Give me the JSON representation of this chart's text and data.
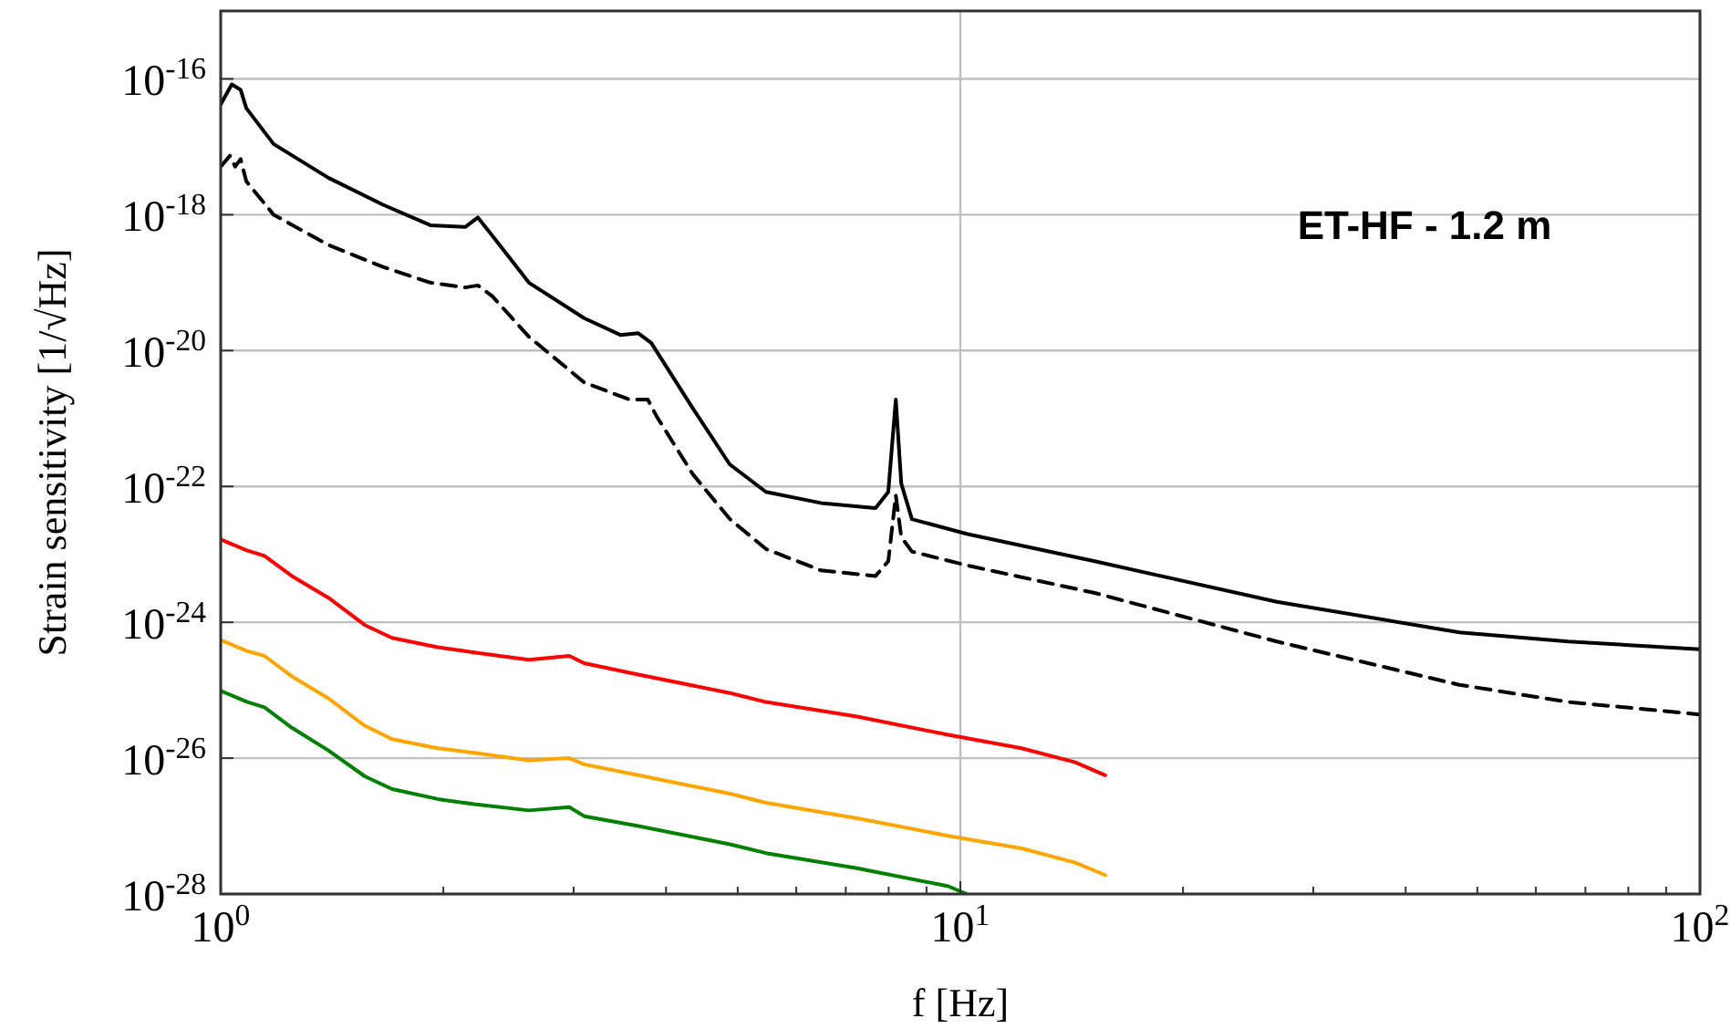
{
  "chart_data": {
    "type": "line",
    "xlabel": "f [Hz]",
    "ylabel": "Strain sensitivity [1/√Hz]",
    "log": "xy",
    "grid": true,
    "xlim": [
      1,
      100
    ],
    "ylim": [
      1e-28,
      1e-15
    ],
    "xticks": [
      {
        "value": 1,
        "label": "10$^{0}$"
      },
      {
        "value": 2,
        "label": null
      },
      {
        "value": 3,
        "label": null
      },
      {
        "value": 4,
        "label": null
      },
      {
        "value": 5,
        "label": null
      },
      {
        "value": 6,
        "label": null
      },
      {
        "value": 7,
        "label": null
      },
      {
        "value": 8,
        "label": null
      },
      {
        "value": 9,
        "label": null
      },
      {
        "value": 10,
        "label": "10$^{1}$"
      },
      {
        "value": 20,
        "label": null
      },
      {
        "value": 30,
        "label": null
      },
      {
        "value": 40,
        "label": null
      },
      {
        "value": 50,
        "label": null
      },
      {
        "value": 60,
        "label": null
      },
      {
        "value": 70,
        "label": null
      },
      {
        "value": 80,
        "label": null
      },
      {
        "value": 90,
        "label": null
      },
      {
        "value": 100,
        "label": "10$^{2}$"
      }
    ],
    "yticks": [
      {
        "value": 1e-28,
        "label": "10$^{-28}$"
      },
      {
        "value": 1e-26,
        "label": "10$^{-26}$"
      },
      {
        "value": 1e-24,
        "label": "10$^{-24}$"
      },
      {
        "value": 1e-22,
        "label": "10$^{-22}$"
      },
      {
        "value": 1e-20,
        "label": "10$^{-20}$"
      },
      {
        "value": 1e-18,
        "label": "10$^{-18}$"
      },
      {
        "value": 1e-16,
        "label": "10$^{-16}$"
      }
    ],
    "annotations": [
      "ET-HF - 1.2 m"
    ],
    "series": [
      {
        "color": "#000000",
        "line_style": "solid",
        "x": [
          1,
          1.035,
          1.064,
          1.083,
          1.179,
          1.398,
          1.658,
          1.921,
          2.141,
          2.227,
          2.33,
          2.61,
          3.1,
          3.47,
          3.67,
          3.82,
          4.35,
          4.88,
          5.46,
          6.48,
          7.68,
          7.99,
          8.18,
          8.32,
          8.6,
          10.2,
          15.2,
          26.8,
          47.3,
          66.4,
          100
        ],
        "values": [
          4.2e-17,
          8.3e-17,
          6.9e-17,
          3.7e-17,
          1.1e-17,
          3.5e-18,
          1.4e-18,
          7e-19,
          6.6e-19,
          9.1e-19,
          4.9e-19,
          1e-19,
          3e-20,
          1.7e-20,
          1.8e-20,
          1.3e-20,
          1.4e-21,
          2.1e-22,
          8.3e-23,
          5.7e-23,
          4.8e-23,
          8.3e-23,
          1.9e-21,
          1.1e-22,
          3.3e-23,
          2e-23,
          7.9e-24,
          2e-24,
          7.1e-25,
          5.2e-25,
          4e-25
        ]
      },
      {
        "color": "#000000",
        "line_style": "dashed",
        "x": [
          1,
          1.029,
          1.046,
          1.064,
          1.083,
          1.179,
          1.398,
          1.658,
          1.921,
          2.141,
          2.227,
          2.33,
          2.61,
          3.1,
          3.57,
          3.78,
          3.88,
          4.35,
          4.88,
          5.46,
          6.48,
          7.68,
          7.99,
          8.18,
          8.32,
          8.6,
          10.2,
          15.2,
          26.8,
          47.3,
          66.4,
          100
        ],
        "values": [
          5.1e-18,
          7.4e-18,
          5.1e-18,
          6.6e-18,
          3.1e-18,
          1e-18,
          3.6e-19,
          1.7e-19,
          1e-19,
          8.5e-20,
          9.1e-20,
          6.3e-20,
          1.6e-20,
          3.4e-21,
          1.9e-21,
          1.9e-21,
          1.1e-21,
          1.5e-22,
          3.3e-23,
          1.2e-23,
          5.8e-24,
          4.8e-24,
          7.9e-24,
          7.4e-23,
          1.8e-23,
          1.1e-23,
          6.9e-24,
          2.7e-24,
          5.2e-25,
          1.2e-25,
          6.7e-26,
          4.4e-26
        ]
      },
      {
        "color": "#ff0000",
        "line_style": "solid",
        "x": [
          1,
          1.083,
          1.146,
          1.248,
          1.398,
          1.566,
          1.705,
          1.965,
          2.2,
          2.61,
          2.96,
          3.1,
          3.67,
          4.88,
          5.46,
          7.25,
          9.63,
          12.1,
          14.3,
          15.7
        ],
        "values": [
          1.66e-23,
          1.15e-23,
          9.5e-24,
          4.8e-24,
          2.3e-24,
          9.1e-25,
          5.9e-25,
          4.3e-25,
          3.6e-25,
          2.8e-25,
          3.2e-25,
          2.5e-25,
          1.7e-25,
          9.1e-26,
          6.7e-26,
          4.1e-26,
          2.2e-26,
          1.4e-26,
          8.7e-27,
          5.6e-27
        ]
      },
      {
        "color": "#ffa500",
        "line_style": "solid",
        "x": [
          1,
          1.083,
          1.146,
          1.248,
          1.398,
          1.566,
          1.705,
          1.965,
          2.2,
          2.61,
          2.96,
          3.1,
          3.67,
          4.88,
          5.46,
          7.25,
          9.63,
          12.1,
          14.3,
          15.7
        ],
        "values": [
          5.5e-25,
          3.8e-25,
          3.2e-25,
          1.6e-25,
          7.6e-26,
          3e-26,
          1.9e-26,
          1.4e-26,
          1.2e-26,
          9.3e-27,
          1e-26,
          8.1e-27,
          5.6e-27,
          3e-27,
          2.2e-27,
          1.3e-27,
          7.2e-28,
          4.7e-28,
          2.9e-28,
          1.9e-28
        ]
      },
      {
        "color": "#008000",
        "line_style": "solid",
        "x": [
          1,
          1.083,
          1.146,
          1.248,
          1.398,
          1.566,
          1.705,
          1.965,
          2.2,
          2.61,
          2.96,
          3.1,
          3.67,
          4.88,
          5.46,
          7.25,
          9.63,
          10.2
        ],
        "values": [
          9.8e-26,
          6.8e-26,
          5.6e-26,
          2.8e-26,
          1.3e-26,
          5.4e-27,
          3.5e-27,
          2.5e-27,
          2.1e-27,
          1.7e-27,
          1.9e-27,
          1.4e-27,
          1e-27,
          5.4e-28,
          4e-28,
          2.4e-28,
          1.3e-28,
          1e-28
        ]
      }
    ]
  }
}
